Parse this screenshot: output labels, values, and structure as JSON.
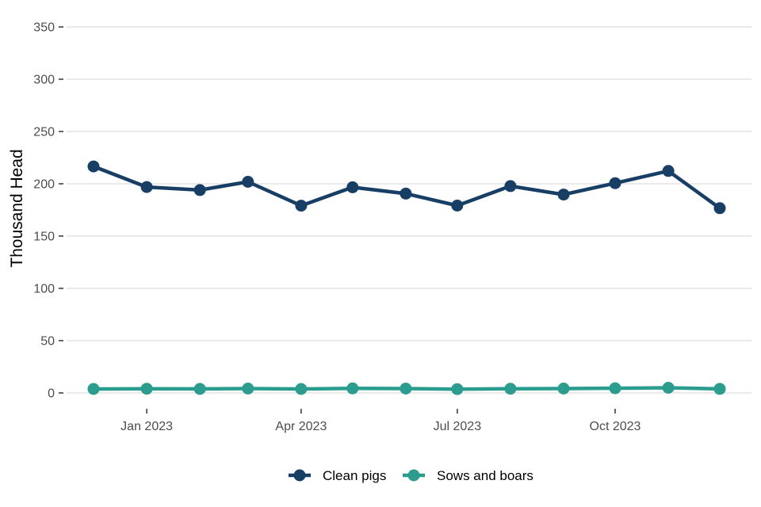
{
  "chart_data": {
    "type": "line",
    "title": "",
    "xlabel": "",
    "ylabel": "Thousand Head",
    "x": [
      "2022-12-01",
      "2023-01-01",
      "2023-02-01",
      "2023-03-01",
      "2023-04-01",
      "2023-05-01",
      "2023-06-01",
      "2023-07-01",
      "2023-08-01",
      "2023-09-01",
      "2023-10-01",
      "2023-11-01",
      "2023-12-01"
    ],
    "x_tick_labels": [
      "Jan 2023",
      "Apr 2023",
      "Jul 2023",
      "Oct 2023"
    ],
    "x_tick_dates": [
      "2023-01-01",
      "2023-04-01",
      "2023-07-01",
      "2023-10-01"
    ],
    "y_ticks": [
      0,
      50,
      100,
      150,
      200,
      250,
      300,
      350
    ],
    "ylim": [
      0,
      350
    ],
    "grid": "horizontal",
    "legend_position": "bottom",
    "series": [
      {
        "name": "Clean pigs",
        "color": "#173f66",
        "values": [
          216.6,
          196.9,
          194.0,
          201.9,
          179.1,
          196.7,
          190.6,
          179.2,
          197.8,
          189.7,
          200.6,
          212.3,
          176.7
        ]
      },
      {
        "name": "Sows and boars",
        "color": "#2a9d8f",
        "values": [
          3.8,
          4.0,
          3.9,
          4.2,
          3.8,
          4.3,
          4.2,
          3.6,
          4.0,
          4.2,
          4.5,
          4.9,
          3.9
        ]
      }
    ]
  }
}
